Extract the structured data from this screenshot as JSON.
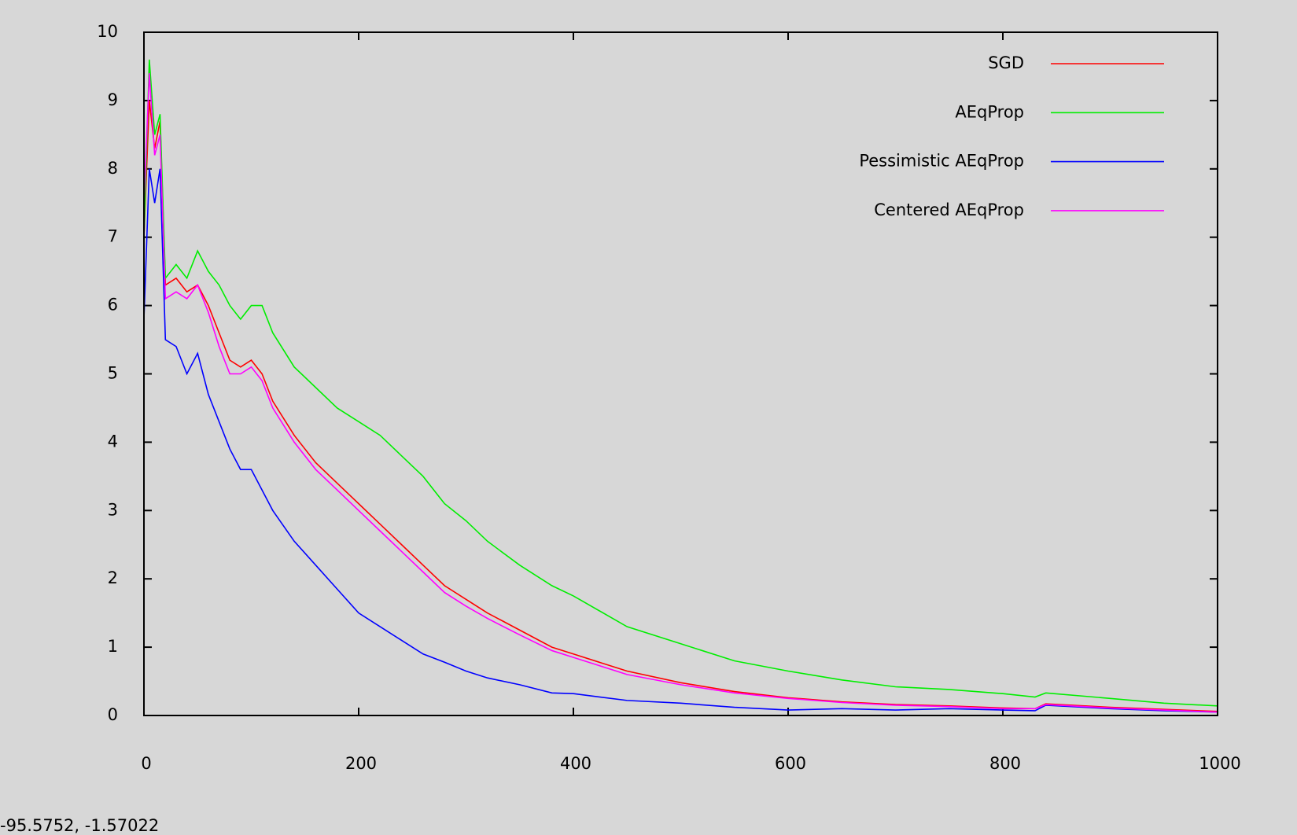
{
  "chart_data": {
    "type": "line",
    "x": [
      0,
      5,
      10,
      15,
      20,
      30,
      40,
      50,
      60,
      70,
      80,
      90,
      100,
      110,
      120,
      140,
      160,
      180,
      200,
      220,
      240,
      260,
      280,
      300,
      320,
      350,
      380,
      400,
      450,
      500,
      550,
      600,
      650,
      700,
      750,
      800,
      830,
      840,
      900,
      950,
      1000
    ],
    "series": [
      {
        "name": "SGD",
        "color": "#ff0000",
        "values": [
          7,
          9,
          8.3,
          8.7,
          6.3,
          6.4,
          6.2,
          6.3,
          6.0,
          5.6,
          5.2,
          5.1,
          5.2,
          5.0,
          4.6,
          4.1,
          3.7,
          3.4,
          3.1,
          2.8,
          2.5,
          2.2,
          1.9,
          1.7,
          1.5,
          1.25,
          1.0,
          0.9,
          0.65,
          0.48,
          0.35,
          0.26,
          0.2,
          0.16,
          0.14,
          0.11,
          0.1,
          0.17,
          0.12,
          0.09,
          0.06
        ]
      },
      {
        "name": "AEqProp",
        "color": "#00ee00",
        "values": [
          7,
          9.6,
          8.5,
          8.8,
          6.4,
          6.6,
          6.4,
          6.8,
          6.5,
          6.3,
          6.0,
          5.8,
          6.0,
          6.0,
          5.6,
          5.1,
          4.8,
          4.5,
          4.3,
          4.1,
          3.8,
          3.5,
          3.1,
          2.85,
          2.55,
          2.2,
          1.9,
          1.75,
          1.3,
          1.05,
          0.8,
          0.65,
          0.52,
          0.42,
          0.38,
          0.32,
          0.27,
          0.33,
          0.25,
          0.18,
          0.14
        ]
      },
      {
        "name": "Pessimistic AEqProp",
        "color": "#0000ff",
        "values": [
          5.8,
          8,
          7.5,
          8,
          5.5,
          5.4,
          5.0,
          5.3,
          4.7,
          4.3,
          3.9,
          3.6,
          3.6,
          3.3,
          3.0,
          2.55,
          2.2,
          1.85,
          1.5,
          1.3,
          1.1,
          0.9,
          0.78,
          0.65,
          0.55,
          0.45,
          0.33,
          0.32,
          0.22,
          0.18,
          0.12,
          0.08,
          0.1,
          0.08,
          0.1,
          0.08,
          0.07,
          0.15,
          0.1,
          0.07,
          0.05
        ]
      },
      {
        "name": "Centered AEqProp",
        "color": "#ff00ff",
        "values": [
          7.5,
          9.4,
          8.2,
          8.5,
          6.1,
          6.2,
          6.1,
          6.3,
          5.9,
          5.4,
          5.0,
          5.0,
          5.1,
          4.9,
          4.5,
          4.0,
          3.6,
          3.3,
          3.0,
          2.7,
          2.4,
          2.1,
          1.8,
          1.6,
          1.42,
          1.18,
          0.95,
          0.85,
          0.6,
          0.45,
          0.33,
          0.25,
          0.19,
          0.15,
          0.13,
          0.1,
          0.1,
          0.16,
          0.11,
          0.08,
          0.05
        ]
      }
    ],
    "xlim": [
      0,
      1000
    ],
    "xticks": [
      0,
      200,
      400,
      600,
      800,
      1000
    ],
    "ylim": [
      0,
      10
    ],
    "yticks": [
      0,
      1,
      2,
      3,
      4,
      5,
      6,
      7,
      8,
      9,
      10
    ],
    "legend": "upper right",
    "grid": false
  },
  "status_text": "-95.5752, -1.57022"
}
